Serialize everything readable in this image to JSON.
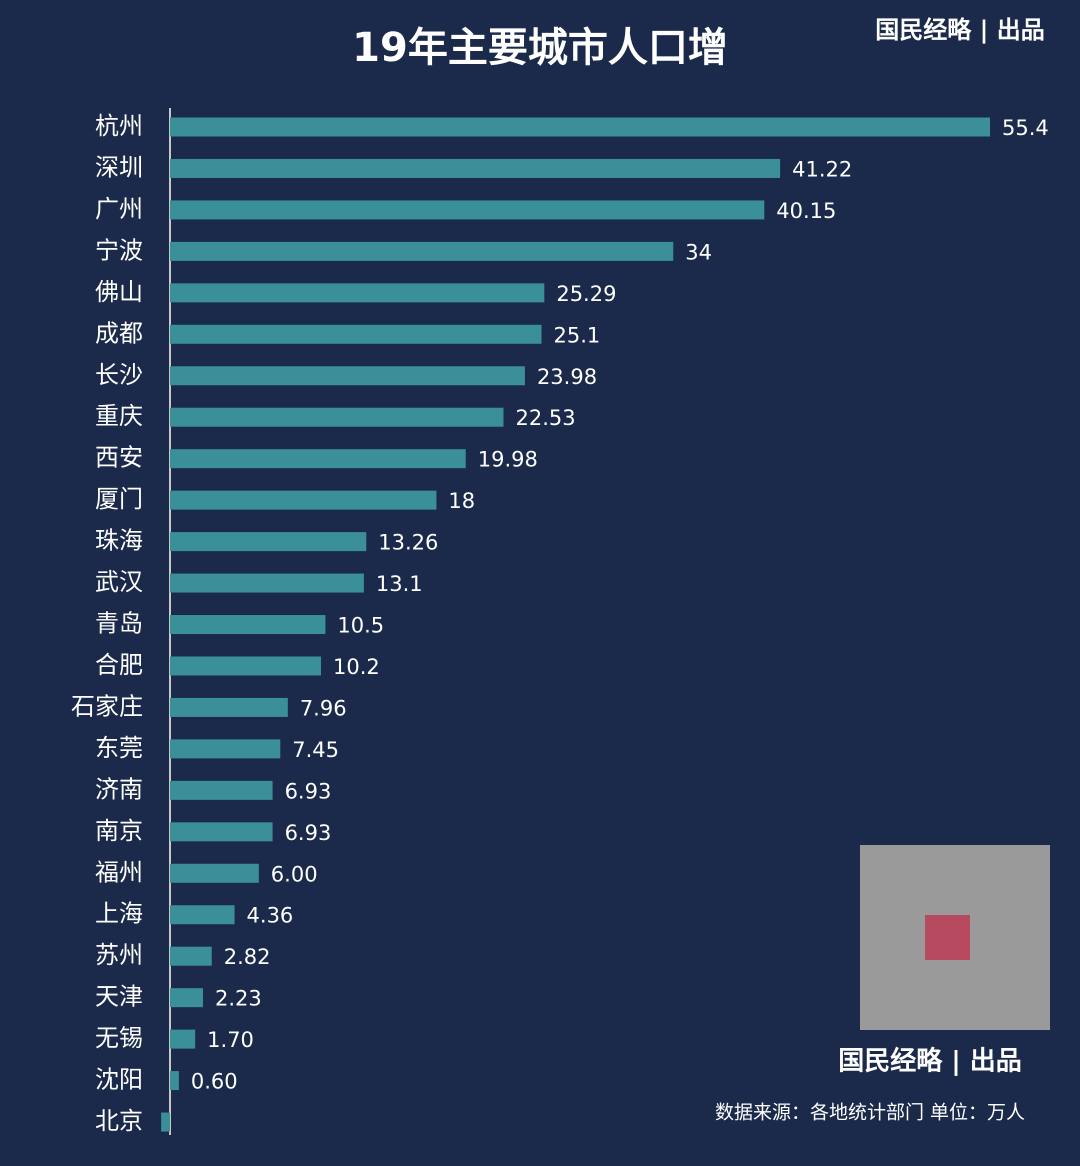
{
  "chart_data": {
    "type": "barh",
    "title": "19年主要城市人口增",
    "brand": "国民经略 | 出品",
    "source": "数据来源：各地统计部门  单位：万人",
    "categories": [
      "杭州",
      "深圳",
      "广州",
      "宁波",
      "佛山",
      "成都",
      "长沙",
      "重庆",
      "西安",
      "厦门",
      "珠海",
      "武汉",
      "青岛",
      "合肥",
      "石家庄",
      "东莞",
      "济南",
      "南京",
      "福州",
      "上海",
      "苏州",
      "天津",
      "无锡",
      "沈阳",
      "北京"
    ],
    "values": [
      55.4,
      41.22,
      40.15,
      34,
      25.29,
      25.1,
      23.98,
      22.53,
      19.98,
      18,
      13.26,
      13.1,
      10.5,
      10.2,
      7.96,
      7.45,
      6.93,
      6.93,
      6.0,
      4.36,
      2.82,
      2.23,
      1.7,
      0.6,
      -0.6
    ],
    "value_labels": [
      "55.4",
      "41.22",
      "40.15",
      "34",
      "25.29",
      "25.1",
      "23.98",
      "22.53",
      "19.98",
      "18",
      "13.26",
      "13.1",
      "10.5",
      "10.2",
      "7.96",
      "7.45",
      "6.93",
      "6.93",
      "6.00",
      "4.36",
      "2.82",
      "2.23",
      "1.70",
      "0.60",
      null
    ],
    "color": "#3b8f99",
    "xlim": [
      0,
      55.4
    ]
  }
}
